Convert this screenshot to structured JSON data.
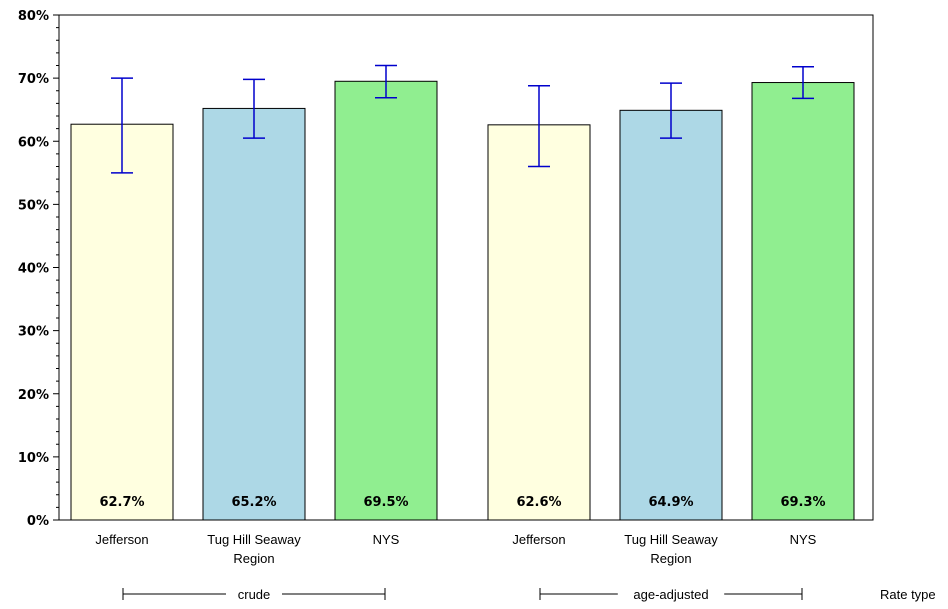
{
  "chart_data": {
    "type": "bar",
    "ylim": [
      0,
      80
    ],
    "yticks": [
      "0%",
      "10%",
      "20%",
      "30%",
      "40%",
      "50%",
      "60%",
      "70%",
      "80%"
    ],
    "grid": false,
    "group_axis_label": "Rate type",
    "groups": [
      {
        "name": "crude",
        "bars": [
          {
            "category": "Jefferson",
            "value": 62.7,
            "label": "62.7%",
            "ci_low": 55.0,
            "ci_high": 70.0,
            "color": "#ffffe0"
          },
          {
            "category": "Tug Hill Seaway Region",
            "value": 65.2,
            "label": "65.2%",
            "ci_low": 60.5,
            "ci_high": 69.8,
            "color": "#add8e6"
          },
          {
            "category": "NYS",
            "value": 69.5,
            "label": "69.5%",
            "ci_low": 66.9,
            "ci_high": 72.0,
            "color": "#90ee90"
          }
        ]
      },
      {
        "name": "age-adjusted",
        "bars": [
          {
            "category": "Jefferson",
            "value": 62.6,
            "label": "62.6%",
            "ci_low": 56.0,
            "ci_high": 68.8,
            "color": "#ffffe0"
          },
          {
            "category": "Tug Hill Seaway Region",
            "value": 64.9,
            "label": "64.9%",
            "ci_low": 60.5,
            "ci_high": 69.2,
            "color": "#add8e6"
          },
          {
            "category": "NYS",
            "value": 69.3,
            "label": "69.3%",
            "ci_low": 66.8,
            "ci_high": 71.8,
            "color": "#90ee90"
          }
        ]
      }
    ],
    "error_bar_color": "#0000cc"
  }
}
